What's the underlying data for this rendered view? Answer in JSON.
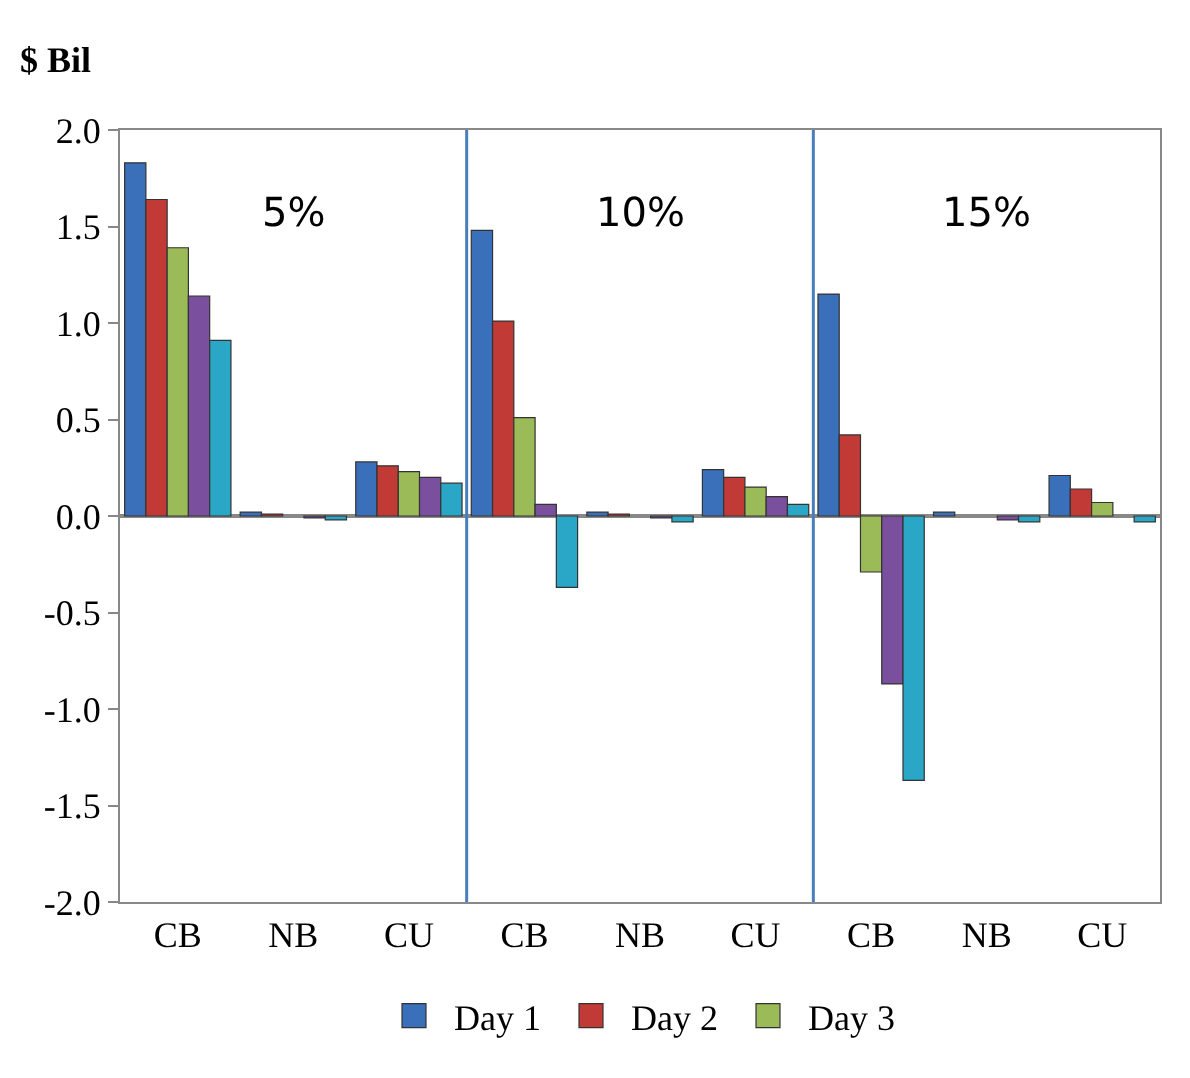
{
  "chart_data": {
    "type": "bar",
    "ylabel": "$ Bil",
    "categories": [
      "CB",
      "NB",
      "CU",
      "CB",
      "NB",
      "CU",
      "CB",
      "NB",
      "CU"
    ],
    "series": [
      {
        "name": "Day 1",
        "color": "#3a6fba",
        "values": [
          1.83,
          0.02,
          0.28,
          1.48,
          0.02,
          0.24,
          1.15,
          0.02,
          0.21
        ]
      },
      {
        "name": "Day 2",
        "color": "#c23a36",
        "values": [
          1.64,
          0.01,
          0.26,
          1.01,
          0.01,
          0.2,
          0.42,
          null,
          0.14
        ]
      },
      {
        "name": "Day 3",
        "color": "#9bbb59",
        "values": [
          1.39,
          null,
          0.23,
          0.51,
          null,
          0.15,
          -0.29,
          null,
          0.07
        ]
      },
      {
        "color": "#7a4f9e",
        "values": [
          1.14,
          -0.01,
          0.2,
          0.06,
          -0.01,
          0.1,
          -0.87,
          -0.02,
          null
        ]
      },
      {
        "color": "#2aa6c6",
        "values": [
          0.91,
          -0.02,
          0.17,
          -0.37,
          -0.03,
          0.06,
          -1.37,
          -0.03,
          -0.03
        ]
      }
    ],
    "ylim": [
      -2.0,
      2.0
    ],
    "yticks": [
      {
        "value": -2.0,
        "label": "-2.0"
      },
      {
        "value": -1.5,
        "label": "-1.5"
      },
      {
        "value": -1.0,
        "label": "-1.0"
      },
      {
        "value": -0.5,
        "label": "-0.5"
      },
      {
        "value": 0,
        "label": "0.0"
      },
      {
        "value": 0.5,
        "label": "0.5"
      },
      {
        "value": 1.0,
        "label": "1.0"
      },
      {
        "value": 1.5,
        "label": "1.5"
      },
      {
        "value": 2.0,
        "label": "2.0"
      }
    ],
    "annotations": [
      "5%",
      "10%",
      "15%"
    ],
    "legend": "bottom"
  }
}
